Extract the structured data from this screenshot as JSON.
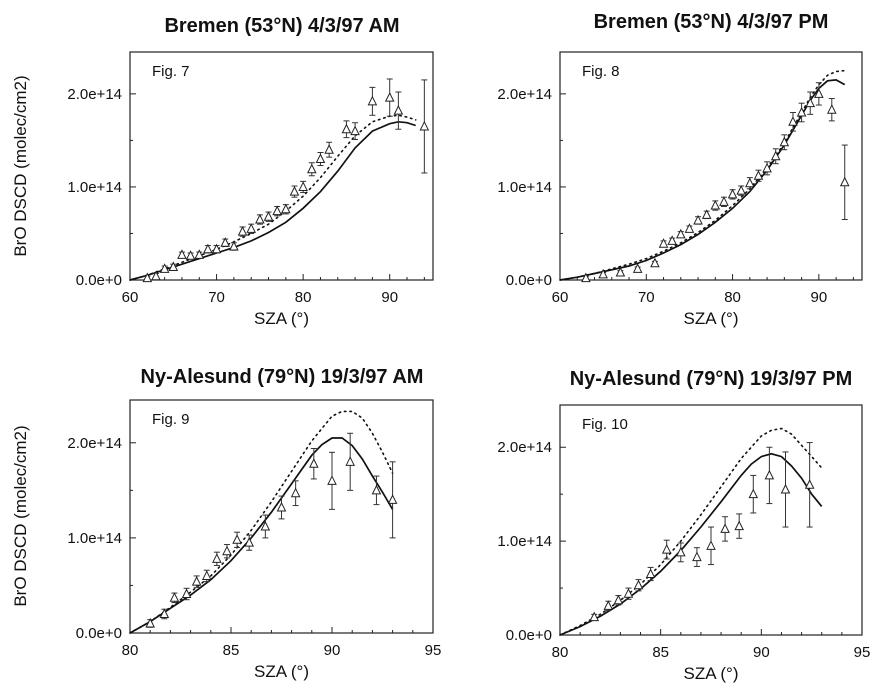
{
  "chart_data": [
    {
      "type": "line",
      "title": "Bremen (53°N) 4/3/97 AM",
      "panel_label": "Fig. 7",
      "xlabel": "SZA (°)",
      "ylabel": "BrO DSCD (molec/cm2)",
      "xlim": [
        60,
        95
      ],
      "ylim": [
        0,
        245000000000000.0
      ],
      "xticks": [
        60,
        70,
        80,
        90
      ],
      "xtick_labels": [
        "60",
        "70",
        "80",
        "90"
      ],
      "yticks": [
        0,
        100000000000000.0,
        200000000000000.0
      ],
      "ytick_labels": [
        "0.0e+0",
        "1.0e+14",
        "2.0e+14"
      ],
      "series": [
        {
          "style": "solid",
          "x": [
            60,
            62,
            64,
            66,
            68,
            70,
            72,
            74,
            76,
            78,
            80,
            82,
            84,
            86,
            88,
            90,
            91,
            92,
            93
          ],
          "y": [
            0,
            5000000000000.0,
            11000000000000.0,
            17000000000000.0,
            23000000000000.0,
            29000000000000.0,
            35000000000000.0,
            42000000000000.0,
            51000000000000.0,
            62000000000000.0,
            77000000000000.0,
            95000000000000.0,
            117000000000000.0,
            142000000000000.0,
            160000000000000.0,
            168000000000000.0,
            170000000000000.0,
            169000000000000.0,
            166000000000000.0
          ]
        },
        {
          "style": "dotted",
          "x": [
            60,
            62,
            64,
            66,
            68,
            70,
            72,
            74,
            76,
            78,
            80,
            82,
            84,
            86,
            88,
            90,
            91,
            92,
            93
          ],
          "y": [
            0,
            5000000000000.0,
            12000000000000.0,
            19000000000000.0,
            26000000000000.0,
            33000000000000.0,
            41000000000000.0,
            50000000000000.0,
            60000000000000.0,
            74000000000000.0,
            90000000000000.0,
            110000000000000.0,
            133000000000000.0,
            155000000000000.0,
            170000000000000.0,
            176000000000000.0,
            177000000000000.0,
            175000000000000.0,
            172000000000000.0
          ]
        },
        {
          "style": "markers",
          "x": [
            62,
            63,
            64,
            65,
            66,
            67,
            68,
            69,
            70,
            71,
            72,
            73,
            74,
            75,
            76,
            77,
            78,
            79,
            80,
            81,
            82,
            83,
            85,
            86,
            88,
            90,
            91,
            94
          ],
          "y": [
            2000000000000.0,
            4000000000000.0,
            12000000000000.0,
            14000000000000.0,
            27000000000000.0,
            26000000000000.0,
            27000000000000.0,
            33000000000000.0,
            33000000000000.0,
            40000000000000.0,
            36000000000000.0,
            52000000000000.0,
            55000000000000.0,
            65000000000000.0,
            68000000000000.0,
            74000000000000.0,
            76000000000000.0,
            95000000000000.0,
            100000000000000.0,
            119000000000000.0,
            130000000000000.0,
            140000000000000.0,
            162000000000000.0,
            160000000000000.0,
            192000000000000.0,
            196000000000000.0,
            182000000000000.0,
            165000000000000.0
          ],
          "err": [
            2000000000000.0,
            3000000000000.0,
            3000000000000.0,
            3000000000000.0,
            3000000000000.0,
            3000000000000.0,
            3000000000000.0,
            4000000000000.0,
            4000000000000.0,
            4000000000000.0,
            4000000000000.0,
            5000000000000.0,
            5000000000000.0,
            5000000000000.0,
            5000000000000.0,
            5000000000000.0,
            5000000000000.0,
            6000000000000.0,
            6000000000000.0,
            7000000000000.0,
            7000000000000.0,
            8000000000000.0,
            9000000000000.0,
            9000000000000.0,
            15000000000000.0,
            20000000000000.0,
            20000000000000.0,
            50000000000000.0
          ]
        }
      ]
    },
    {
      "type": "line",
      "title": "Bremen (53°N) 4/3/97 PM",
      "panel_label": "Fig. 8",
      "xlabel": "SZA (°)",
      "ylabel": "",
      "xlim": [
        60,
        95
      ],
      "ylim": [
        0,
        245000000000000.0
      ],
      "xticks": [
        60,
        70,
        80,
        90
      ],
      "xtick_labels": [
        "60",
        "70",
        "80",
        "90"
      ],
      "yticks": [
        0,
        100000000000000.0,
        200000000000000.0
      ],
      "ytick_labels": [
        "0.0e+0",
        "1.0e+14",
        "2.0e+14"
      ],
      "series": [
        {
          "style": "solid",
          "x": [
            60,
            62,
            64,
            66,
            68,
            70,
            72,
            74,
            76,
            78,
            80,
            82,
            84,
            86,
            88,
            89,
            90,
            91,
            92,
            93
          ],
          "y": [
            0,
            3000000000000.0,
            7000000000000.0,
            11000000000000.0,
            15000000000000.0,
            21000000000000.0,
            29000000000000.0,
            38000000000000.0,
            49000000000000.0,
            62000000000000.0,
            77000000000000.0,
            95000000000000.0,
            118000000000000.0,
            145000000000000.0,
            177000000000000.0,
            193000000000000.0,
            206000000000000.0,
            214000000000000.0,
            215000000000000.0,
            210000000000000.0
          ]
        },
        {
          "style": "dotted",
          "x": [
            60,
            62,
            64,
            66,
            68,
            70,
            72,
            74,
            76,
            78,
            80,
            82,
            84,
            86,
            88,
            89,
            90,
            91,
            92,
            93
          ],
          "y": [
            0,
            3000000000000.0,
            7000000000000.0,
            12000000000000.0,
            17000000000000.0,
            23000000000000.0,
            31000000000000.0,
            40000000000000.0,
            51000000000000.0,
            64000000000000.0,
            80000000000000.0,
            98000000000000.0,
            120000000000000.0,
            147000000000000.0,
            180000000000000.0,
            196000000000000.0,
            210000000000000.0,
            220000000000000.0,
            224000000000000.0,
            225000000000000.0
          ]
        },
        {
          "style": "markers",
          "x": [
            63,
            65,
            67,
            69,
            71,
            72,
            73,
            74,
            75,
            76,
            77,
            78,
            79,
            80,
            81,
            82,
            83,
            84,
            85,
            86,
            87,
            88,
            89,
            90,
            91.5,
            93
          ],
          "y": [
            2000000000000.0,
            6000000000000.0,
            8000000000000.0,
            12000000000000.0,
            18000000000000.0,
            39000000000000.0,
            42000000000000.0,
            49000000000000.0,
            55000000000000.0,
            64000000000000.0,
            70000000000000.0,
            80000000000000.0,
            84000000000000.0,
            92000000000000.0,
            96000000000000.0,
            104000000000000.0,
            112000000000000.0,
            120000000000000.0,
            133000000000000.0,
            148000000000000.0,
            170000000000000.0,
            180000000000000.0,
            190000000000000.0,
            200000000000000.0,
            183000000000000.0,
            105000000000000.0
          ],
          "err": [
            2000000000000.0,
            2000000000000.0,
            2000000000000.0,
            2000000000000.0,
            2000000000000.0,
            3000000000000.0,
            3000000000000.0,
            3000000000000.0,
            3000000000000.0,
            4000000000000.0,
            4000000000000.0,
            5000000000000.0,
            5000000000000.0,
            5000000000000.0,
            5000000000000.0,
            6000000000000.0,
            6000000000000.0,
            7000000000000.0,
            8000000000000.0,
            8000000000000.0,
            10000000000000.0,
            10000000000000.0,
            12000000000000.0,
            12000000000000.0,
            12000000000000.0,
            40000000000000.0
          ]
        }
      ]
    },
    {
      "type": "line",
      "title": "Ny-Alesund (79°N) 19/3/97 AM",
      "panel_label": "Fig. 9",
      "xlabel": "SZA (°)",
      "ylabel": "BrO DSCD (molec/cm2)",
      "xlim": [
        80,
        95
      ],
      "ylim": [
        0,
        245000000000000.0
      ],
      "xticks": [
        80,
        85,
        90,
        95
      ],
      "xtick_labels": [
        "80",
        "85",
        "90",
        "95"
      ],
      "yticks": [
        0,
        100000000000000.0,
        200000000000000.0
      ],
      "ytick_labels": [
        "0.0e+0",
        "1.0e+14",
        "2.0e+14"
      ],
      "series": [
        {
          "style": "solid",
          "x": [
            80,
            81,
            82,
            83,
            84,
            85,
            86,
            87,
            88,
            89,
            89.5,
            90,
            90.5,
            91,
            91.5,
            92,
            92.5,
            93
          ],
          "y": [
            0,
            12000000000000.0,
            26000000000000.0,
            40000000000000.0,
            56000000000000.0,
            76000000000000.0,
            100000000000000.0,
            127000000000000.0,
            157000000000000.0,
            187000000000000.0,
            198000000000000.0,
            205000000000000.0,
            205000000000000.0,
            197000000000000.0,
            183000000000000.0,
            165000000000000.0,
            148000000000000.0,
            130000000000000.0
          ]
        },
        {
          "style": "dotted",
          "x": [
            80,
            81,
            82,
            83,
            84,
            85,
            86,
            87,
            88,
            89,
            90,
            90.5,
            91,
            91.5,
            92,
            92.5,
            93
          ],
          "y": [
            0,
            12000000000000.0,
            27000000000000.0,
            43000000000000.0,
            60000000000000.0,
            82000000000000.0,
            108000000000000.0,
            138000000000000.0,
            170000000000000.0,
            202000000000000.0,
            228000000000000.0,
            233000000000000.0,
            233000000000000.0,
            226000000000000.0,
            210000000000000.0,
            190000000000000.0,
            168000000000000.0
          ]
        },
        {
          "style": "markers",
          "x": [
            81,
            81.7,
            82.2,
            82.8,
            83.3,
            83.8,
            84.3,
            84.8,
            85.3,
            85.9,
            86.7,
            87.5,
            88.2,
            89.1,
            90,
            90.9,
            92.2,
            93
          ],
          "y": [
            10000000000000.0,
            20000000000000.0,
            37000000000000.0,
            41000000000000.0,
            54000000000000.0,
            60000000000000.0,
            78000000000000.0,
            86000000000000.0,
            98000000000000.0,
            95000000000000.0,
            112000000000000.0,
            132000000000000.0,
            147000000000000.0,
            178000000000000.0,
            160000000000000.0,
            180000000000000.0,
            150000000000000.0,
            140000000000000.0
          ],
          "err": [
            4000000000000.0,
            5000000000000.0,
            5000000000000.0,
            6000000000000.0,
            6000000000000.0,
            6000000000000.0,
            7000000000000.0,
            7000000000000.0,
            8000000000000.0,
            8000000000000.0,
            12000000000000.0,
            12000000000000.0,
            13000000000000.0,
            16000000000000.0,
            30000000000000.0,
            30000000000000.0,
            15000000000000.0,
            40000000000000.0
          ]
        }
      ]
    },
    {
      "type": "line",
      "title": "Ny-Alesund (79°N) 19/3/97 PM",
      "panel_label": "Fig. 10",
      "xlabel": "SZA (°)",
      "ylabel": "",
      "xlim": [
        80,
        95
      ],
      "ylim": [
        0,
        245000000000000.0
      ],
      "xticks": [
        80,
        85,
        90,
        95
      ],
      "xtick_labels": [
        "80",
        "85",
        "90",
        "95"
      ],
      "yticks": [
        0,
        100000000000000.0,
        200000000000000.0
      ],
      "ytick_labels": [
        "0.0e+0",
        "1.0e+14",
        "2.0e+14"
      ],
      "series": [
        {
          "style": "solid",
          "x": [
            80,
            81,
            82,
            83,
            84,
            85,
            86,
            87,
            88,
            89,
            89.5,
            90,
            90.5,
            91,
            91.5,
            92,
            92.5,
            93
          ],
          "y": [
            0,
            9000000000000.0,
            20000000000000.0,
            33000000000000.0,
            49000000000000.0,
            68000000000000.0,
            90000000000000.0,
            115000000000000.0,
            142000000000000.0,
            170000000000000.0,
            182000000000000.0,
            190000000000000.0,
            193000000000000.0,
            190000000000000.0,
            180000000000000.0,
            167000000000000.0,
            150000000000000.0,
            137000000000000.0
          ]
        },
        {
          "style": "dotted",
          "x": [
            80,
            81,
            82,
            83,
            84,
            85,
            86,
            87,
            88,
            89,
            90,
            90.5,
            91,
            91.5,
            92,
            92.5,
            93
          ],
          "y": [
            0,
            10000000000000.0,
            22000000000000.0,
            37000000000000.0,
            54000000000000.0,
            75000000000000.0,
            100000000000000.0,
            128000000000000.0,
            158000000000000.0,
            188000000000000.0,
            212000000000000.0,
            218000000000000.0,
            220000000000000.0,
            214000000000000.0,
            202000000000000.0,
            190000000000000.0,
            178000000000000.0
          ]
        },
        {
          "style": "markers",
          "x": [
            81.7,
            82.4,
            82.9,
            83.4,
            83.9,
            84.5,
            85.3,
            86,
            86.8,
            87.5,
            88.2,
            88.9,
            89.6,
            90.4,
            91.2,
            92.4
          ],
          "y": [
            19000000000000.0,
            31000000000000.0,
            37000000000000.0,
            44000000000000.0,
            53000000000000.0,
            65000000000000.0,
            91000000000000.0,
            88000000000000.0,
            83000000000000.0,
            95000000000000.0,
            113000000000000.0,
            116000000000000.0,
            150000000000000.0,
            170000000000000.0,
            155000000000000.0,
            160000000000000.0
          ],
          "err": [
            3000000000000.0,
            5000000000000.0,
            5000000000000.0,
            6000000000000.0,
            6000000000000.0,
            7000000000000.0,
            10000000000000.0,
            10000000000000.0,
            10000000000000.0,
            20000000000000.0,
            13000000000000.0,
            13000000000000.0,
            20000000000000.0,
            30000000000000.0,
            40000000000000.0,
            45000000000000.0
          ]
        }
      ]
    }
  ]
}
